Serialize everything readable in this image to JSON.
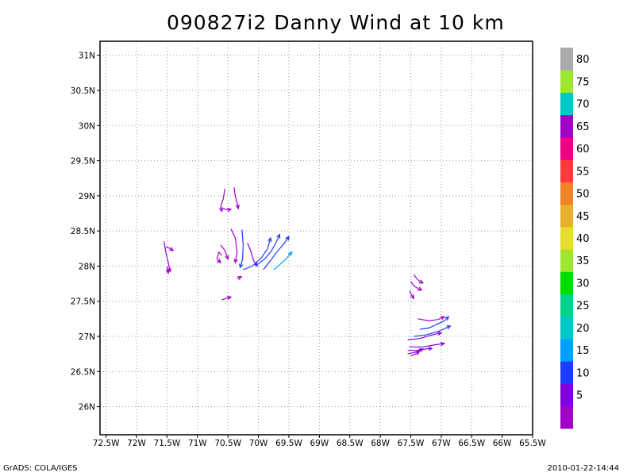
{
  "chart_data": {
    "type": "streamline",
    "title": "090827i2 Danny Wind at 10 km",
    "x_ticks": [
      "72.5W",
      "72W",
      "71.5W",
      "71W",
      "70.5W",
      "70W",
      "69.5W",
      "69W",
      "68.5W",
      "68W",
      "67.5W",
      "67W",
      "66.5W",
      "66W",
      "65.5W"
    ],
    "y_ticks": [
      "26N",
      "26.5N",
      "27N",
      "27.5N",
      "28N",
      "28.5N",
      "29N",
      "29.5N",
      "30N",
      "30.5N",
      "31N"
    ],
    "xlim": [
      -72.6,
      -65.5
    ],
    "ylim": [
      25.6,
      31.2
    ],
    "grid": true,
    "colorbar": {
      "labels": [
        "5",
        "10",
        "15",
        "20",
        "25",
        "30",
        "35",
        "40",
        "45",
        "50",
        "55",
        "60",
        "65",
        "70",
        "75",
        "80"
      ],
      "colors": [
        "#a000c8",
        "#8200dc",
        "#1e3cff",
        "#00a0ff",
        "#00c8c8",
        "#00d28c",
        "#00dc00",
        "#a0e632",
        "#e6dc32",
        "#e6af2d",
        "#f08228",
        "#fa3c3c",
        "#f00082",
        "#a000c8",
        "#00c8c8",
        "#a0e632",
        "#aaaaaa"
      ]
    },
    "streamlines": [
      {
        "speed_class": "5",
        "points": [
          [
            -70.55,
            29.1
          ],
          [
            -70.58,
            28.95
          ],
          [
            -70.62,
            28.85
          ],
          [
            -70.6,
            28.78
          ]
        ]
      },
      {
        "speed_class": "5",
        "points": [
          [
            -70.4,
            29.12
          ],
          [
            -70.38,
            29.0
          ],
          [
            -70.35,
            28.9
          ],
          [
            -70.33,
            28.82
          ]
        ]
      },
      {
        "speed_class": "5",
        "points": [
          [
            -70.58,
            28.82
          ],
          [
            -70.5,
            28.8
          ],
          [
            -70.45,
            28.81
          ]
        ]
      },
      {
        "speed_class": "5",
        "points": [
          [
            -70.45,
            28.53
          ],
          [
            -70.38,
            28.4
          ],
          [
            -70.35,
            28.2
          ],
          [
            -70.38,
            28.05
          ]
        ]
      },
      {
        "speed_class": "5",
        "points": [
          [
            -70.62,
            28.3
          ],
          [
            -70.55,
            28.22
          ],
          [
            -70.5,
            28.1
          ]
        ]
      },
      {
        "speed_class": "5",
        "points": [
          [
            -70.6,
            28.15
          ],
          [
            -70.65,
            28.2
          ],
          [
            -70.68,
            28.1
          ],
          [
            -70.62,
            28.05
          ]
        ]
      },
      {
        "speed_class": "5",
        "points": [
          [
            -70.6,
            27.52
          ],
          [
            -70.5,
            27.55
          ],
          [
            -70.45,
            27.56
          ]
        ]
      },
      {
        "speed_class": "5",
        "points": [
          [
            -70.35,
            27.82
          ],
          [
            -70.28,
            27.85
          ]
        ]
      },
      {
        "speed_class": "10",
        "points": [
          [
            -70.18,
            28.33
          ],
          [
            -70.12,
            28.2
          ],
          [
            -70.08,
            28.08
          ],
          [
            -70.02,
            28.0
          ]
        ]
      },
      {
        "speed_class": "5",
        "points": [
          [
            -71.55,
            28.35
          ],
          [
            -71.52,
            28.2
          ],
          [
            -71.48,
            28.05
          ],
          [
            -71.45,
            27.92
          ]
        ]
      },
      {
        "speed_class": "5",
        "points": [
          [
            -71.52,
            28.28
          ],
          [
            -71.45,
            28.25
          ],
          [
            -71.4,
            28.22
          ]
        ]
      },
      {
        "speed_class": "5",
        "points": [
          [
            -71.5,
            28.0
          ],
          [
            -71.48,
            27.9
          ]
        ]
      },
      {
        "speed_class": "15",
        "points": [
          [
            -70.27,
            28.52
          ],
          [
            -70.25,
            28.3
          ],
          [
            -70.26,
            28.1
          ],
          [
            -70.3,
            27.98
          ]
        ]
      },
      {
        "speed_class": "15",
        "points": [
          [
            -70.25,
            27.95
          ],
          [
            -70.1,
            28.0
          ],
          [
            -69.95,
            28.12
          ],
          [
            -69.85,
            28.25
          ],
          [
            -69.8,
            28.4
          ]
        ]
      },
      {
        "speed_class": "15",
        "points": [
          [
            -70.05,
            28.0
          ],
          [
            -69.9,
            28.1
          ],
          [
            -69.8,
            28.2
          ],
          [
            -69.72,
            28.32
          ],
          [
            -69.65,
            28.45
          ]
        ]
      },
      {
        "speed_class": "15",
        "points": [
          [
            -69.92,
            27.95
          ],
          [
            -69.8,
            28.08
          ],
          [
            -69.7,
            28.2
          ],
          [
            -69.58,
            28.32
          ],
          [
            -69.5,
            28.42
          ]
        ]
      },
      {
        "speed_class": "20",
        "points": [
          [
            -69.75,
            27.95
          ],
          [
            -69.65,
            28.02
          ],
          [
            -69.55,
            28.1
          ],
          [
            -69.45,
            28.2
          ]
        ]
      },
      {
        "speed_class": "5",
        "points": [
          [
            -67.45,
            27.88
          ],
          [
            -67.4,
            27.82
          ],
          [
            -67.35,
            27.78
          ],
          [
            -67.3,
            27.76
          ]
        ]
      },
      {
        "speed_class": "5",
        "points": [
          [
            -67.5,
            27.78
          ],
          [
            -67.45,
            27.72
          ],
          [
            -67.38,
            27.68
          ],
          [
            -67.32,
            27.66
          ]
        ]
      },
      {
        "speed_class": "5",
        "points": [
          [
            -67.52,
            27.65
          ],
          [
            -67.48,
            27.58
          ],
          [
            -67.45,
            27.54
          ]
        ]
      },
      {
        "speed_class": "5",
        "points": [
          [
            -67.38,
            27.25
          ],
          [
            -67.2,
            27.22
          ],
          [
            -67.05,
            27.24
          ],
          [
            -66.95,
            27.28
          ]
        ]
      },
      {
        "speed_class": "15",
        "points": [
          [
            -67.35,
            27.1
          ],
          [
            -67.2,
            27.12
          ],
          [
            -67.05,
            27.18
          ],
          [
            -66.95,
            27.22
          ],
          [
            -66.88,
            27.28
          ]
        ]
      },
      {
        "speed_class": "15",
        "points": [
          [
            -67.45,
            27.0
          ],
          [
            -67.25,
            27.02
          ],
          [
            -67.05,
            27.07
          ],
          [
            -66.92,
            27.12
          ],
          [
            -66.85,
            27.15
          ]
        ]
      },
      {
        "speed_class": "10",
        "points": [
          [
            -67.55,
            26.95
          ],
          [
            -67.35,
            26.97
          ],
          [
            -67.15,
            27.02
          ],
          [
            -67.0,
            27.05
          ]
        ]
      },
      {
        "speed_class": "10",
        "points": [
          [
            -67.52,
            26.85
          ],
          [
            -67.3,
            26.85
          ],
          [
            -67.1,
            26.88
          ],
          [
            -66.95,
            26.9
          ]
        ]
      },
      {
        "speed_class": "10",
        "points": [
          [
            -67.55,
            26.8
          ],
          [
            -67.4,
            26.8
          ],
          [
            -67.25,
            26.82
          ],
          [
            -67.15,
            26.83
          ]
        ]
      },
      {
        "speed_class": "10",
        "points": [
          [
            -67.55,
            26.75
          ],
          [
            -67.45,
            26.77
          ],
          [
            -67.35,
            26.8
          ],
          [
            -67.3,
            26.82
          ]
        ]
      },
      {
        "speed_class": "5",
        "points": [
          [
            -67.5,
            26.72
          ],
          [
            -67.42,
            26.75
          ],
          [
            -67.36,
            26.78
          ]
        ]
      }
    ]
  },
  "footer": {
    "left": "GrADS: COLA/IGES",
    "right": "2010-01-22-14:44"
  }
}
